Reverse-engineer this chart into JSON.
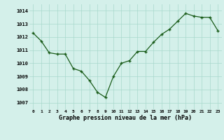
{
  "x": [
    0,
    1,
    2,
    3,
    4,
    5,
    6,
    7,
    8,
    9,
    10,
    11,
    12,
    13,
    14,
    15,
    16,
    17,
    18,
    19,
    20,
    21,
    22,
    23
  ],
  "y": [
    1012.3,
    1011.7,
    1010.8,
    1010.7,
    1010.7,
    1009.6,
    1009.4,
    1008.7,
    1007.8,
    1007.4,
    1009.0,
    1010.0,
    1010.2,
    1010.9,
    1010.9,
    1011.6,
    1012.2,
    1012.6,
    1013.2,
    1013.8,
    1013.6,
    1013.5,
    1013.5,
    1012.5
  ],
  "line_color": "#1a5c1a",
  "marker_color": "#1a5c1a",
  "bg_color": "#d4f0ea",
  "grid_color": "#a8d8cc",
  "ylabel_vals": [
    1007,
    1008,
    1009,
    1010,
    1011,
    1012,
    1013,
    1014
  ],
  "xlabel_vals": [
    0,
    1,
    2,
    3,
    4,
    5,
    6,
    7,
    8,
    9,
    10,
    11,
    12,
    13,
    14,
    15,
    16,
    17,
    18,
    19,
    20,
    21,
    22,
    23
  ],
  "xlabel": "Graphe pression niveau de la mer (hPa)",
  "ylim": [
    1006.5,
    1014.5
  ],
  "xlim": [
    -0.5,
    23.5
  ]
}
